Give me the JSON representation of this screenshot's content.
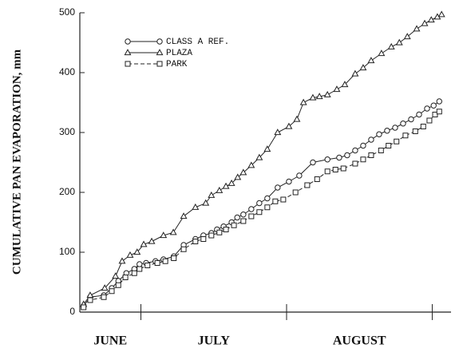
{
  "chart_data": {
    "type": "line",
    "y_label": "CUMULATIVE PAN EVAPORATION, mm",
    "categories": [
      "JUNE",
      "JULY",
      "AUGUST"
    ],
    "xlim": [
      0,
      79
    ],
    "xticks": [
      13,
      44,
      75
    ],
    "ylim": [
      0,
      500
    ],
    "yticks": [
      0,
      100,
      200,
      300,
      400,
      500
    ],
    "grid": false,
    "legend": "upper left",
    "series": [
      {
        "name": "CLASS A REF.",
        "color": "#222222",
        "marker": "circle",
        "dash": false,
        "x": [
          0.8,
          2.2,
          5.1,
          6.8,
          8.2,
          9.9,
          11.6,
          12.7,
          14.1,
          16.1,
          17.8,
          20.0,
          22.1,
          24.6,
          26.3,
          28.0,
          29.2,
          30.6,
          32.3,
          33.5,
          34.8,
          36.5,
          38.2,
          39.9,
          42.1,
          44.5,
          46.7,
          49.6,
          52.7,
          55.2,
          56.9,
          58.6,
          60.3,
          62.0,
          63.7,
          65.4,
          67.1,
          68.8,
          70.5,
          72.2,
          73.9,
          75.3,
          76.5
        ],
        "values": [
          10,
          25,
          28,
          40,
          52,
          65,
          72,
          80,
          82,
          85,
          88,
          93,
          112,
          122,
          128,
          132,
          138,
          143,
          150,
          158,
          163,
          172,
          182,
          190,
          208,
          218,
          228,
          250,
          255,
          258,
          262,
          270,
          278,
          288,
          297,
          303,
          308,
          315,
          322,
          330,
          340,
          345,
          352
        ]
      },
      {
        "name": "PLAZA",
        "color": "#222222",
        "marker": "triangle",
        "dash": false,
        "x": [
          0.8,
          2.2,
          5.3,
          7.6,
          9.0,
          10.7,
          12.2,
          13.6,
          15.3,
          17.8,
          19.9,
          22.1,
          24.6,
          26.8,
          28.0,
          29.7,
          31.1,
          32.3,
          33.6,
          34.8,
          36.5,
          38.2,
          39.9,
          42.1,
          44.5,
          46.2,
          47.6,
          49.6,
          51.0,
          52.7,
          54.7,
          56.4,
          58.6,
          60.3,
          62.0,
          64.2,
          66.3,
          68.0,
          69.7,
          71.7,
          73.4,
          74.8,
          76.1,
          77.0
        ],
        "values": [
          13,
          28,
          40,
          60,
          85,
          95,
          100,
          113,
          118,
          128,
          133,
          160,
          175,
          182,
          195,
          203,
          210,
          215,
          225,
          233,
          245,
          258,
          272,
          300,
          310,
          322,
          350,
          358,
          360,
          363,
          372,
          380,
          398,
          408,
          420,
          432,
          443,
          450,
          460,
          473,
          482,
          488,
          493,
          497
        ]
      },
      {
        "name": "PARK",
        "color": "#222222",
        "marker": "square",
        "dash": true,
        "x": [
          0.8,
          2.2,
          5.1,
          6.8,
          8.2,
          9.7,
          11.6,
          12.7,
          14.4,
          16.5,
          18.2,
          20.0,
          22.1,
          24.6,
          26.3,
          28.0,
          29.7,
          31.1,
          32.8,
          34.8,
          36.5,
          38.2,
          39.9,
          41.6,
          43.3,
          45.9,
          48.4,
          50.5,
          52.7,
          54.4,
          56.1,
          58.6,
          60.3,
          62.0,
          64.1,
          65.7,
          67.4,
          69.3,
          71.4,
          73.1,
          74.4,
          75.6,
          76.5
        ],
        "values": [
          8,
          20,
          25,
          35,
          45,
          58,
          65,
          72,
          78,
          82,
          85,
          90,
          105,
          118,
          122,
          128,
          133,
          138,
          145,
          152,
          160,
          167,
          175,
          185,
          188,
          200,
          212,
          222,
          235,
          238,
          240,
          248,
          255,
          262,
          270,
          278,
          285,
          295,
          302,
          310,
          320,
          330,
          335
        ]
      }
    ]
  }
}
